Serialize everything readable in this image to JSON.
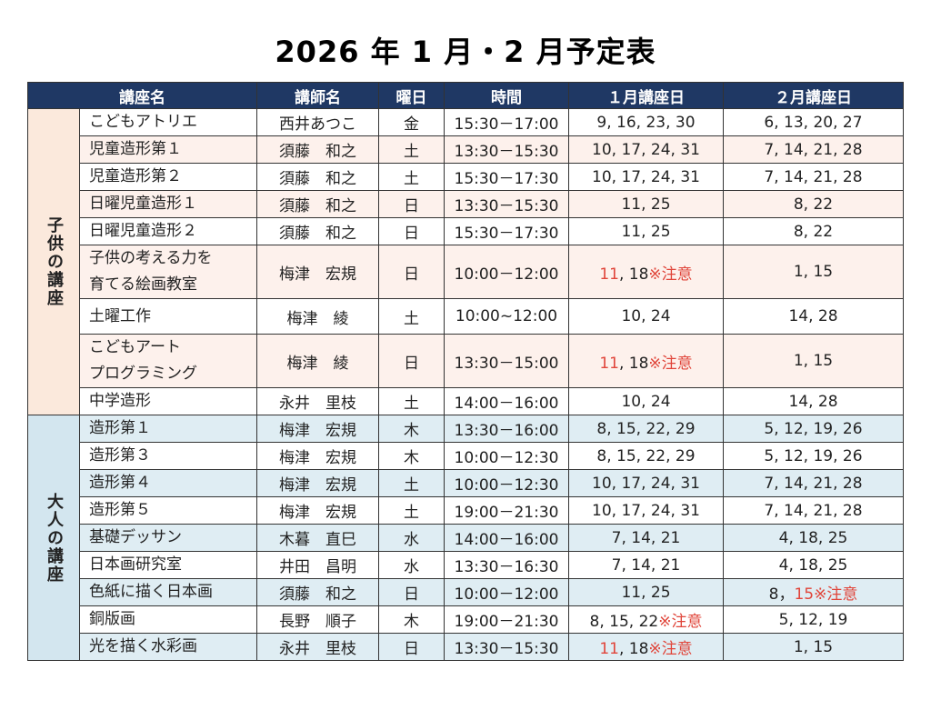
{
  "title": "2026 年 1 月・2 月予定表",
  "table": {
    "header": [
      "講座名",
      "講師名",
      "曜日",
      "時間",
      "１月講座日",
      "２月講座日"
    ],
    "groups": [
      {
        "label": "子供の講座",
        "rows": [
          [
            "こどもアトリエ",
            "西井あつこ",
            "金",
            "15:30－17:00",
            "9, 16, 23, 30",
            "6, 13, 20, 27"
          ],
          [
            "児童造形第１",
            "須藤　和之",
            "土",
            "13:30－15:30",
            "10, 17, 24, 31",
            "7, 14, 21, 28"
          ],
          [
            "児童造形第２",
            "須藤　和之",
            "土",
            "15:30－17:30",
            "10, 17, 24, 31",
            "7, 14, 21, 28"
          ],
          [
            "日曜児童造形１",
            "須藤　和之",
            "日",
            "13:30－15:30",
            "11, 25",
            "8, 22"
          ],
          [
            "日曜児童造形２",
            "須藤　和之",
            "日",
            "15:30－17:30",
            "11, 25",
            "8, 22"
          ],
          [
            "子供の考える力を\n育てる絵画教室",
            "梅津　宏規",
            "日",
            "10:00－12:00",
            [
              {
                "text": "11",
                "red": true
              },
              {
                "text": ", 18"
              },
              {
                "text": "※注意",
                "red": true
              }
            ],
            "1, 15"
          ],
          [
            "土曜工作",
            "梅津　綾",
            "土",
            "10:00~12:00",
            "10, 24",
            "14, 28"
          ],
          [
            "こどもアート\nプログラミング",
            "梅津　綾",
            "日",
            "13:30－15:00",
            [
              {
                "text": "11",
                "red": true
              },
              {
                "text": ", 18"
              },
              {
                "text": "※注意",
                "red": true
              }
            ],
            "1, 15"
          ],
          [
            "中学造形",
            "永井　里枝",
            "土",
            "14:00－16:00",
            "10, 24",
            "14, 28"
          ]
        ]
      },
      {
        "label": "大人の講座",
        "rows": [
          [
            "造形第１",
            "梅津　宏規",
            "木",
            "13:30－16:00",
            "8, 15, 22, 29",
            "5, 12, 19, 26"
          ],
          [
            "造形第３",
            "梅津　宏規",
            "木",
            "10:00－12:30",
            "8, 15, 22, 29",
            "5, 12, 19, 26"
          ],
          [
            "造形第４",
            "梅津　宏規",
            "土",
            "10:00－12:30",
            "10, 17, 24, 31",
            "7, 14, 21, 28"
          ],
          [
            "造形第５",
            "梅津　宏規",
            "土",
            "19:00－21:30",
            "10, 17, 24, 31",
            "7, 14, 21, 28"
          ],
          [
            "基礎デッサン",
            "木暮　直巳",
            "水",
            "14:00－16:00",
            "7, 14, 21",
            "4, 18, 25"
          ],
          [
            "日本画研究室",
            "井田　昌明",
            "水",
            "13:30－16:30",
            "7, 14, 21",
            "4, 18, 25"
          ],
          [
            "色紙に描く日本画",
            "須藤　和之",
            "日",
            "10:00－12:00",
            "11, 25",
            [
              {
                "text": "8，"
              },
              {
                "text": "15※注意",
                "red": true
              }
            ]
          ],
          [
            "銅版画",
            "長野　順子",
            "木",
            "19:00－21:30",
            [
              {
                "text": "8, 15, 22"
              },
              {
                "text": "※注意",
                "red": true
              }
            ],
            "5, 12, 19"
          ],
          [
            "光を描く水彩画",
            "永井　里枝",
            "日",
            "13:30－15:30",
            [
              {
                "text": "11",
                "red": true
              },
              {
                "text": ", 18"
              },
              {
                "text": "※注意",
                "red": true
              }
            ],
            "1, 15"
          ]
        ]
      }
    ]
  }
}
